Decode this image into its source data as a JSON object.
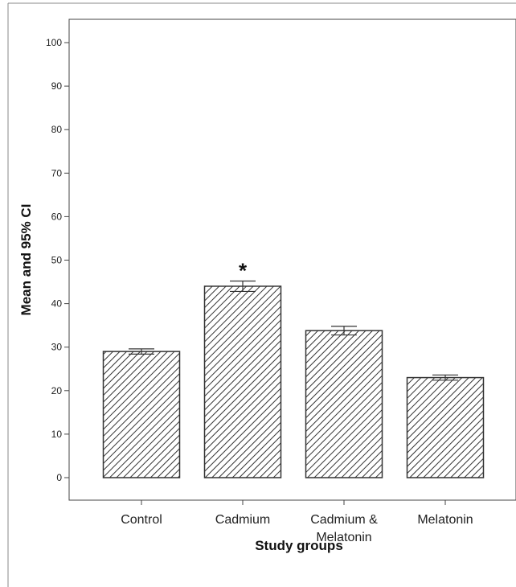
{
  "chart_data": {
    "type": "bar",
    "title": "",
    "xlabel": "Study groups",
    "ylabel": "Mean and 95% CI",
    "ylim": [
      0,
      100
    ],
    "yticks": [
      0,
      10,
      20,
      30,
      40,
      50,
      60,
      70,
      80,
      90,
      100
    ],
    "categories": [
      {
        "label": [
          "Control"
        ],
        "value": 29,
        "ci_low": 28.4,
        "ci_high": 29.6
      },
      {
        "label": [
          "Cadmium"
        ],
        "value": 44,
        "ci_low": 42.8,
        "ci_high": 45.2,
        "annotation": "*"
      },
      {
        "label": [
          "Cadmium &",
          "Melatonin"
        ],
        "value": 33.8,
        "ci_low": 32.8,
        "ci_high": 34.8
      },
      {
        "label": [
          "Melatonin"
        ],
        "value": 23,
        "ci_low": 22.4,
        "ci_high": 23.6
      }
    ],
    "bar_fill": "diagonal-hatch",
    "bar_color": "#333333",
    "grid": false,
    "legend": "none"
  }
}
